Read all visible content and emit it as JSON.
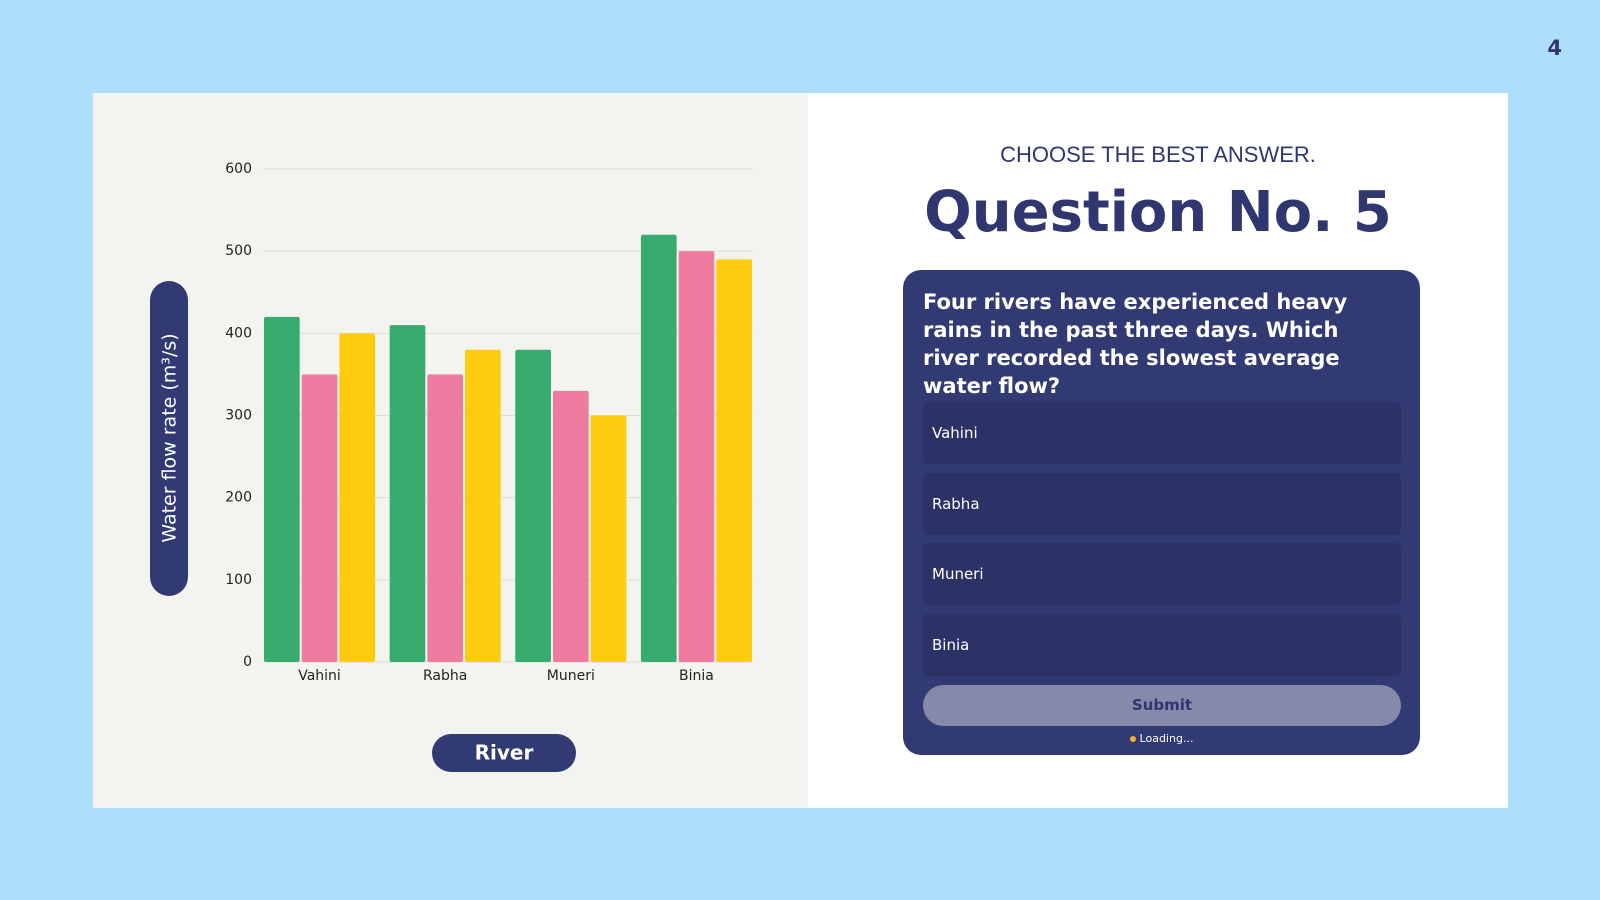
{
  "page_number": "4",
  "chart_data": {
    "type": "bar",
    "categories": [
      "Vahini",
      "Rabha",
      "Muneri",
      "Binia"
    ],
    "series": [
      {
        "color": "#38ab6f",
        "values": [
          420,
          410,
          380,
          520
        ]
      },
      {
        "color": "#ee7ca1",
        "values": [
          350,
          350,
          330,
          500
        ]
      },
      {
        "color": "#fdcc0f",
        "values": [
          400,
          380,
          300,
          490
        ]
      }
    ],
    "ylim": [
      0,
      600
    ],
    "yticks": [
      0,
      100,
      200,
      300,
      400,
      500,
      600
    ],
    "grid": true,
    "y_label": "Water flow rate (m³/s)",
    "x_label": "River"
  },
  "quiz": {
    "instruction": "CHOOSE THE BEST ANSWER.",
    "title": "Question No. 5",
    "question": "Four rivers have experienced heavy rains in the past three days. Which river recorded the slowest average water flow?",
    "options": [
      "Vahini",
      "Rabha",
      "Muneri",
      "Binia"
    ],
    "submit": "Submit",
    "status": "Loading..."
  }
}
